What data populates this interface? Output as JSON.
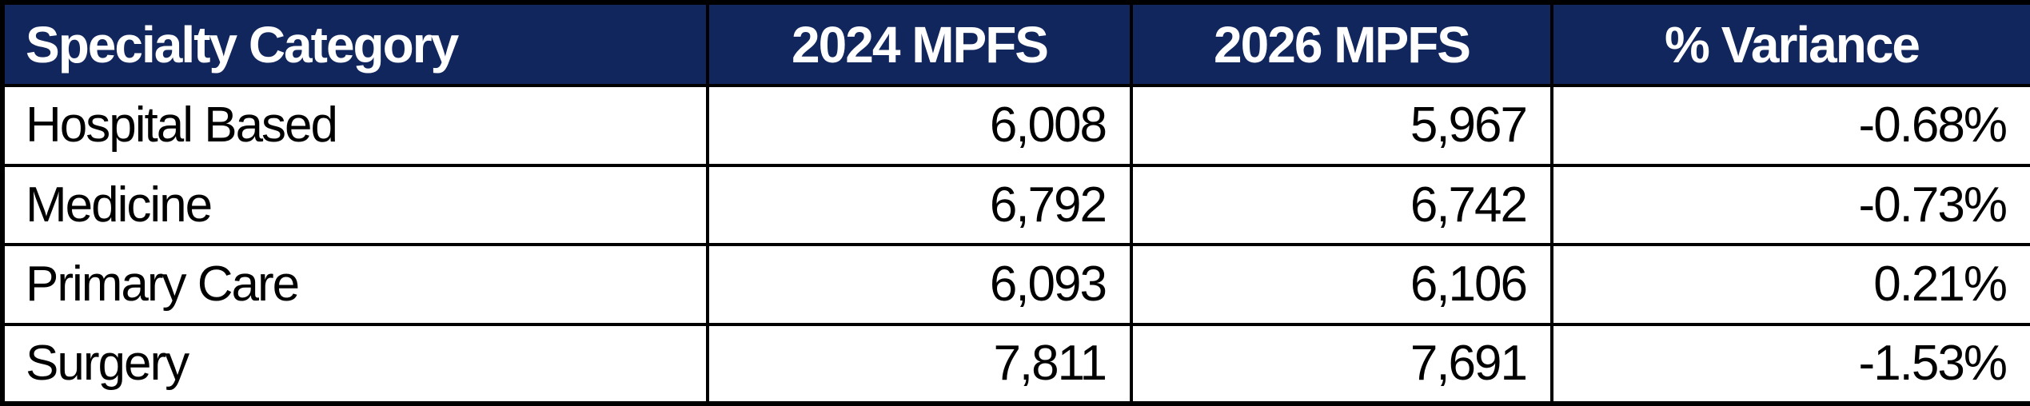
{
  "table": {
    "columns": [
      {
        "label": "Specialty Category",
        "align": "left"
      },
      {
        "label": "2024 MPFS",
        "align": "center"
      },
      {
        "label": "2026 MPFS",
        "align": "center"
      },
      {
        "label": "% Variance",
        "align": "center"
      }
    ],
    "rows": [
      [
        "Hospital Based",
        "6,008",
        "5,967",
        "-0.68%"
      ],
      [
        "Medicine",
        "6,792",
        "6,742",
        "-0.73%"
      ],
      [
        "Primary Care",
        "6,093",
        "6,106",
        "0.21%"
      ],
      [
        "Surgery",
        "7,811",
        "7,691",
        "-1.53%"
      ]
    ]
  },
  "colors": {
    "header_bg": "#12265E",
    "header_text": "#FFFFFF",
    "body_bg": "#FFFFFF",
    "body_text": "#000000",
    "border": "#000000"
  },
  "chart_data": {
    "type": "table",
    "title": "",
    "columns": [
      "Specialty Category",
      "2024 MPFS",
      "2026 MPFS",
      "% Variance"
    ],
    "categories": [
      "Hospital Based",
      "Medicine",
      "Primary Care",
      "Surgery"
    ],
    "series": [
      {
        "name": "2024 MPFS",
        "values": [
          6008,
          6792,
          6093,
          7811
        ]
      },
      {
        "name": "2026 MPFS",
        "values": [
          5967,
          6742,
          6106,
          7691
        ]
      },
      {
        "name": "% Variance",
        "values": [
          -0.68,
          -0.73,
          0.21,
          -1.53
        ]
      }
    ],
    "rows": [
      [
        "Hospital Based",
        "6,008",
        "5,967",
        "-0.68%"
      ],
      [
        "Medicine",
        "6,792",
        "6,742",
        "-0.73%"
      ],
      [
        "Primary Care",
        "6,093",
        "6,106",
        "0.21%"
      ],
      [
        "Surgery",
        "7,811",
        "7,691",
        "-1.53%"
      ]
    ]
  }
}
